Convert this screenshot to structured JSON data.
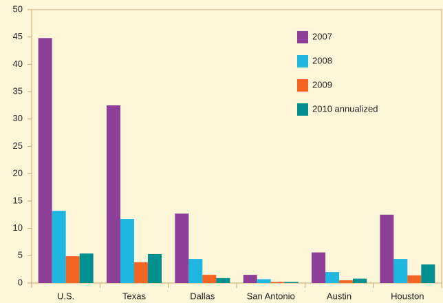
{
  "chart_data": {
    "type": "bar",
    "categories": [
      "U.S.",
      "Texas",
      "Dallas",
      "San Antonio",
      "Austin",
      "Houston"
    ],
    "series": [
      {
        "name": "2007",
        "color": "#8e3f97",
        "values": [
          44.8,
          32.5,
          12.7,
          1.5,
          5.6,
          12.5
        ]
      },
      {
        "name": "2008",
        "color": "#1fb6e0",
        "values": [
          13.2,
          11.7,
          4.4,
          0.7,
          2.0,
          4.4
        ]
      },
      {
        "name": "2009",
        "color": "#f26522",
        "values": [
          4.9,
          3.8,
          1.5,
          0.2,
          0.5,
          1.4
        ]
      },
      {
        "name": "2010 annualized",
        "color": "#00908f",
        "values": [
          5.4,
          5.3,
          0.9,
          0.2,
          0.8,
          3.4
        ]
      }
    ],
    "ylim": [
      0,
      50
    ],
    "yticks": [
      0,
      5,
      10,
      15,
      20,
      25,
      30,
      35,
      40,
      45,
      50
    ]
  }
}
